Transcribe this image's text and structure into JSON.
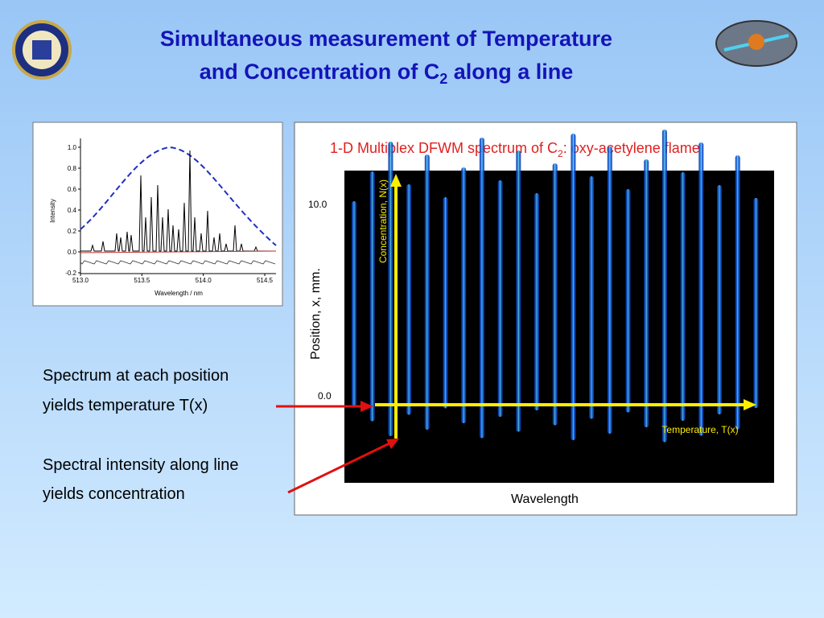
{
  "header": {
    "title_line1": "Simultaneous measurement of Temperature",
    "title_line2": "and Concentration of C",
    "title_line2_sub": "2",
    "title_line2_end": " along a line"
  },
  "left_plot": {
    "y_label": "Intensity",
    "x_label": "Wavelength / nm",
    "yticks": [
      "1.0",
      "0.8",
      "0.6",
      "0.4",
      "0.2",
      "0.0",
      "-0.2"
    ],
    "xticks": [
      "513.0",
      "513.5",
      "514.0",
      "514.5"
    ]
  },
  "right_figure": {
    "title": "1-D Multiplex DFWM spectrum of C",
    "title_sub": "2",
    "title_end": ": oxy-acetylene flame",
    "y_label": "Position, x, mm.",
    "yticks": [
      "10.0",
      "0.0"
    ],
    "x_label": "Wavelength",
    "concentration_label": "Concentration, N(x)",
    "temperature_label": "Temperature, T(x)"
  },
  "notes": [
    "Spectrum at each position",
    "yields temperature T(x)",
    "Spectral intensity along line",
    "yields concentration"
  ]
}
